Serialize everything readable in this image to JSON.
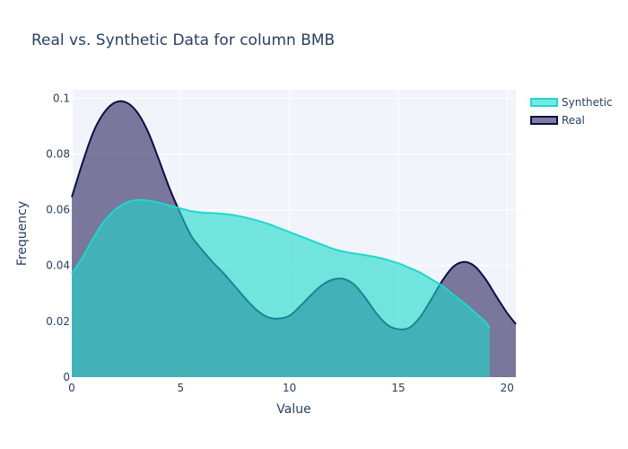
{
  "chart_data": {
    "type": "area",
    "title": "Real vs. Synthetic Data for column BMB",
    "xlabel": "Value",
    "ylabel": "Frequency",
    "xlim": [
      0,
      20.4
    ],
    "ylim": [
      0,
      0.103
    ],
    "x_ticks": [
      0,
      5,
      10,
      15,
      20
    ],
    "y_ticks": [
      0,
      0.02,
      0.04,
      0.06,
      0.08,
      0.1
    ],
    "x_tick_labels": [
      "0",
      "5",
      "10",
      "15",
      "20"
    ],
    "y_tick_labels": [
      "0",
      "0.02",
      "0.04",
      "0.06",
      "0.08",
      "0.1"
    ],
    "grid": true,
    "legend_position": "top-right",
    "series": [
      {
        "name": "Synthetic",
        "line_color": "#1ed8cb",
        "fill_color": "rgba(30,216,203,0.6)",
        "x": [
          0,
          0.5,
          1,
          1.5,
          2,
          2.5,
          3,
          3.5,
          4,
          4.5,
          5,
          5.5,
          6,
          6.5,
          7,
          7.5,
          8,
          8.5,
          9,
          9.5,
          10,
          10.5,
          11,
          11.5,
          12,
          12.5,
          13,
          13.5,
          14,
          14.5,
          15,
          15.5,
          16,
          16.5,
          17,
          17.5,
          18,
          18.5,
          19,
          19.2
        ],
        "values": [
          0.037,
          0.043,
          0.05,
          0.056,
          0.06,
          0.0625,
          0.0635,
          0.0633,
          0.0625,
          0.0615,
          0.0605,
          0.0595,
          0.059,
          0.0588,
          0.0585,
          0.058,
          0.0572,
          0.0562,
          0.055,
          0.0535,
          0.052,
          0.0505,
          0.049,
          0.0475,
          0.046,
          0.045,
          0.0443,
          0.0437,
          0.043,
          0.042,
          0.0408,
          0.0392,
          0.0375,
          0.0352,
          0.0328,
          0.0297,
          0.0267,
          0.0233,
          0.0198,
          0.0175
        ]
      },
      {
        "name": "Real",
        "line_color": "#0e0d45",
        "fill_color": "rgba(34,29,87,0.58)",
        "x": [
          0,
          0.5,
          1,
          1.5,
          2,
          2.5,
          3,
          3.5,
          4,
          4.5,
          5,
          5.5,
          6,
          6.5,
          7,
          7.5,
          8,
          8.5,
          9,
          9.5,
          10,
          10.5,
          11,
          11.5,
          12,
          12.5,
          13,
          13.5,
          14,
          14.5,
          15,
          15.5,
          16,
          16.5,
          17,
          17.5,
          18,
          18.5,
          19,
          19.5,
          20,
          20.4
        ],
        "values": [
          0.0645,
          0.077,
          0.088,
          0.095,
          0.0985,
          0.0985,
          0.095,
          0.088,
          0.078,
          0.0675,
          0.0585,
          0.0505,
          0.0455,
          0.041,
          0.037,
          0.0325,
          0.028,
          0.024,
          0.0215,
          0.021,
          0.022,
          0.0255,
          0.0295,
          0.033,
          0.035,
          0.0352,
          0.033,
          0.0283,
          0.0228,
          0.0187,
          0.0172,
          0.0177,
          0.0215,
          0.0277,
          0.0343,
          0.0394,
          0.0413,
          0.0398,
          0.0352,
          0.029,
          0.023,
          0.019
        ]
      }
    ],
    "legend_order": [
      "Synthetic",
      "Real"
    ]
  }
}
